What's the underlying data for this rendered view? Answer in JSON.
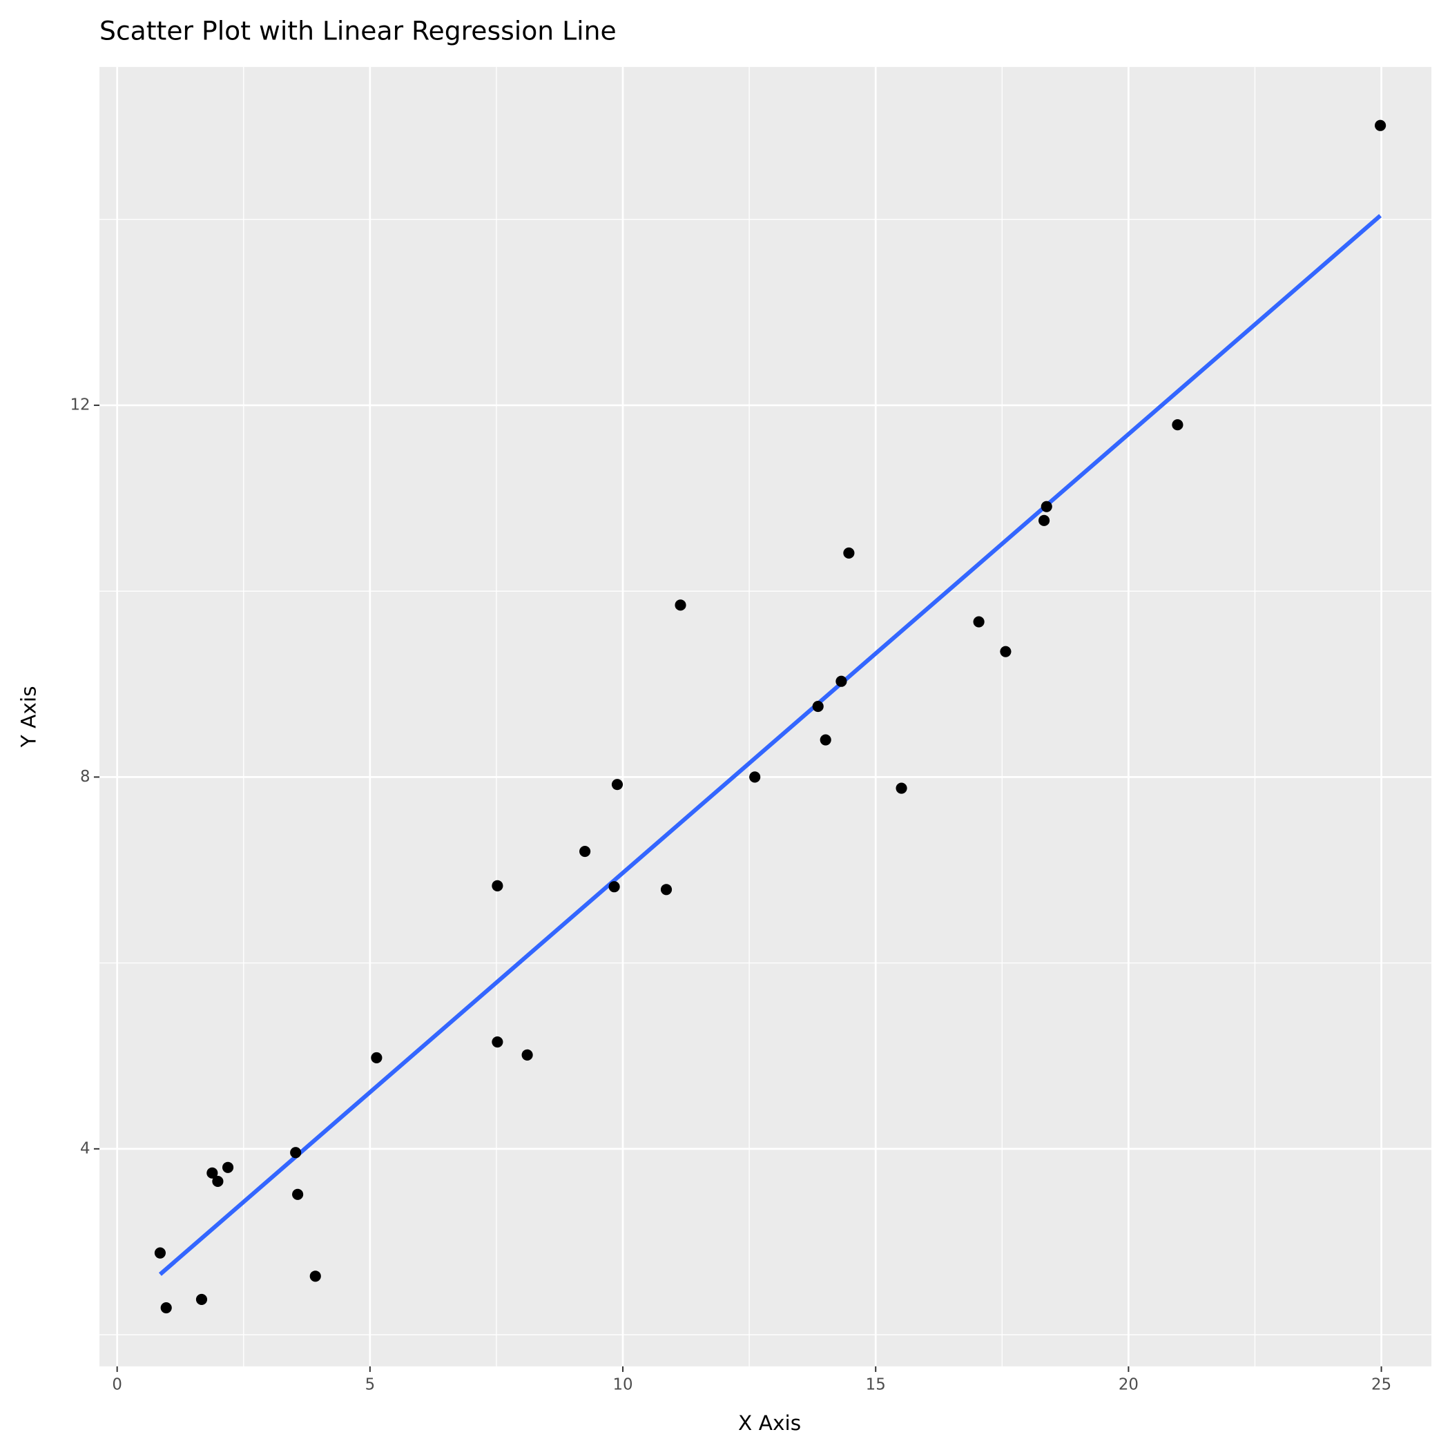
{
  "chart_data": {
    "type": "scatter",
    "title": "Scatter Plot with Linear Regression Line",
    "x_label": "X Axis",
    "y_label": "Y Axis",
    "x": [
      0.85,
      0.97,
      1.67,
      1.88,
      1.99,
      2.19,
      3.53,
      3.57,
      3.92,
      5.13,
      7.52,
      7.52,
      8.11,
      9.25,
      9.83,
      9.89,
      10.86,
      11.14,
      12.61,
      13.86,
      14.01,
      14.32,
      14.47,
      15.51,
      17.04,
      17.57,
      18.33,
      18.38,
      20.97,
      24.98
    ],
    "y": [
      2.88,
      2.29,
      2.38,
      3.74,
      3.65,
      3.8,
      3.96,
      3.51,
      2.63,
      4.98,
      6.83,
      5.15,
      5.01,
      7.2,
      6.82,
      7.92,
      6.79,
      9.85,
      8.0,
      8.76,
      8.4,
      9.03,
      10.41,
      7.88,
      9.67,
      9.35,
      10.76,
      10.91,
      11.79,
      15.01
    ],
    "point_color": "#000000",
    "fit_line": {
      "x": [
        0.85,
        24.98
      ],
      "y": [
        2.65,
        14.04
      ],
      "color": "#3366ff"
    },
    "xlim": [
      -0.35,
      25.99
    ],
    "ylim": [
      1.66,
      15.64
    ],
    "xticks": [
      0,
      5,
      10,
      15,
      20,
      25
    ],
    "yticks": [
      4,
      8,
      12
    ],
    "grid": true
  }
}
